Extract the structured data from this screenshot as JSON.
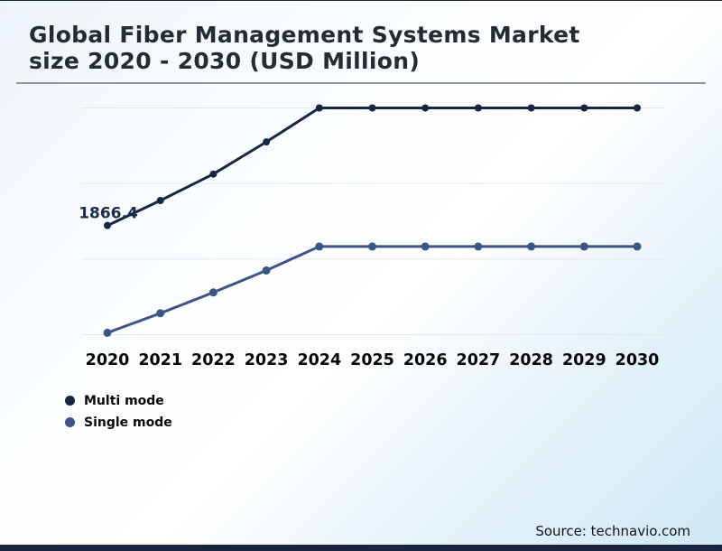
{
  "page": {
    "title_lines": [
      "Global Fiber Management Systems Market",
      "size 2020 - 2030 (USD Million)"
    ],
    "source": "Source: technavio.com"
  },
  "legend": {
    "items": [
      {
        "label": "Multi mode",
        "color": "#192642"
      },
      {
        "label": "Single mode",
        "color": "#3e5487"
      }
    ]
  },
  "chart_data": {
    "type": "line",
    "title": "Global Fiber Management Systems Market size 2020 - 2030 (USD Million)",
    "x": [
      "2020",
      "2021",
      "2022",
      "2023",
      "2024",
      "2025",
      "2026",
      "2027",
      "2028",
      "2029",
      "2030"
    ],
    "series": [
      {
        "name": "Multi mode",
        "color": "#192642",
        "values": [
          1866.4,
          2065,
          2275,
          2530,
          2800,
          2800,
          2800,
          2800,
          2800,
          2800,
          2800
        ]
      },
      {
        "name": "Single mode",
        "color": "#3e5487",
        "values": [
          1015,
          1170,
          1335,
          1510,
          1700,
          1700,
          1700,
          1700,
          1700,
          1700,
          1700
        ]
      }
    ],
    "annotations": [
      {
        "text": "1866.4",
        "series": "Multi mode",
        "x": "2020",
        "color": "#1c2b4d"
      }
    ],
    "ylim": [
      1000,
      2800
    ],
    "gridline_values": [
      1000,
      1600,
      2200,
      2800
    ],
    "xlabel": "",
    "ylabel": "",
    "grid": "horizontal-only",
    "legend_position": "bottom-left",
    "y_axis_tick_labels_shown": false
  }
}
